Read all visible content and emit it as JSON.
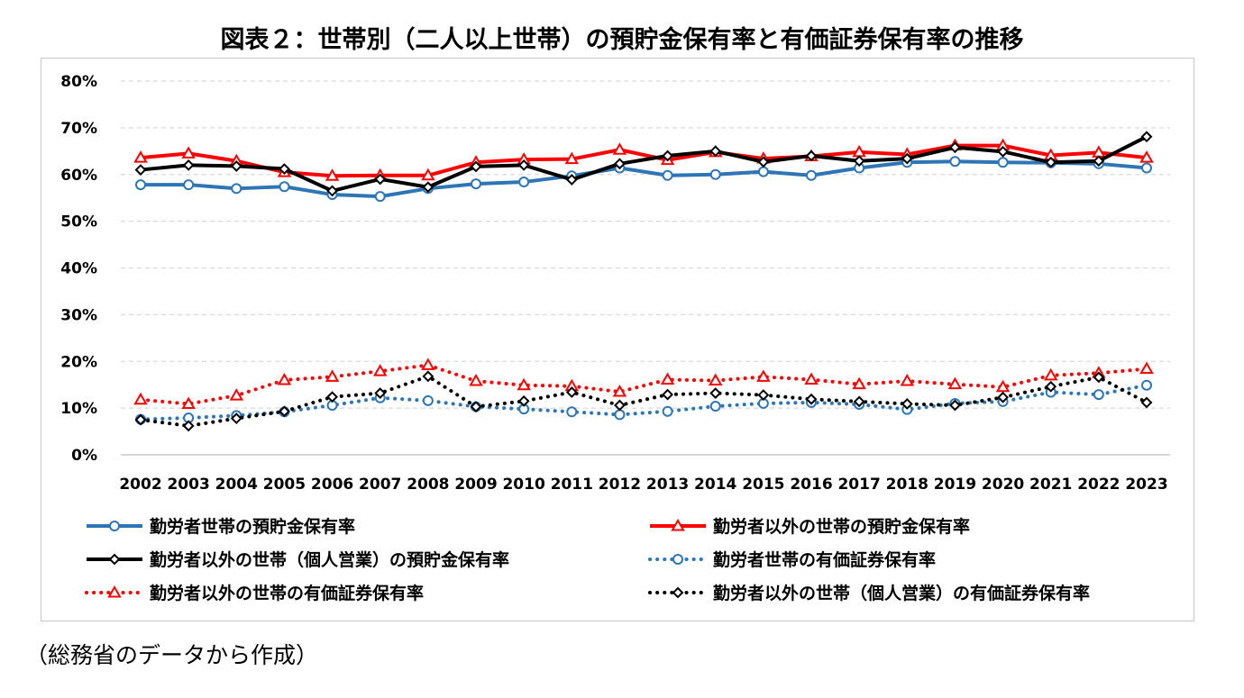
{
  "title": "図表２：世帯別（二人以上世帯）の預貯金保有率と有価証券保有率の推移",
  "source": "（総務省のデータから作成）",
  "colors": {
    "blue": "#2e75b6",
    "red": "#ff0000",
    "black": "#000000",
    "grid": "#d9d9d9"
  },
  "chart_data": {
    "type": "line",
    "title": "",
    "xlabel": "",
    "ylabel": "",
    "ylim": [
      0,
      80
    ],
    "yticks": [
      0,
      10,
      20,
      30,
      40,
      50,
      60,
      70,
      80
    ],
    "ytick_labels": [
      "0%",
      "10%",
      "20%",
      "30%",
      "40%",
      "50%",
      "60%",
      "70%",
      "80%"
    ],
    "grid": "horizontal-dashed",
    "legend_position": "bottom",
    "categories": [
      "2002",
      "2003",
      "2004",
      "2005",
      "2006",
      "2007",
      "2008",
      "2009",
      "2010",
      "2011",
      "2012",
      "2013",
      "2014",
      "2015",
      "2016",
      "2017",
      "2018",
      "2019",
      "2020",
      "2021",
      "2022",
      "2023"
    ],
    "series": [
      {
        "name": "勤労者世帯の預貯金保有率",
        "color": "#2e75b6",
        "line": "solid",
        "marker": "circle",
        "values": [
          57.8,
          57.8,
          57.0,
          57.4,
          55.7,
          55.3,
          57.0,
          58.0,
          58.4,
          59.7,
          61.4,
          59.8,
          60.0,
          60.6,
          59.8,
          61.4,
          62.6,
          62.8,
          62.6,
          62.5,
          62.3,
          61.4
        ]
      },
      {
        "name": "勤労者以外の世帯の預貯金保有率",
        "color": "#ff0000",
        "line": "solid",
        "marker": "triangle",
        "values": [
          63.6,
          64.5,
          62.9,
          60.5,
          59.7,
          59.8,
          59.8,
          62.6,
          63.2,
          63.3,
          65.3,
          63.1,
          64.8,
          63.4,
          63.9,
          64.8,
          64.3,
          66.2,
          66.2,
          64.1,
          64.7,
          63.6
        ]
      },
      {
        "name": "勤労者以外の世帯（個人営業）の預貯金保有率",
        "color": "#000000",
        "line": "solid",
        "marker": "diamond",
        "values": [
          61.0,
          62.0,
          61.8,
          61.2,
          56.5,
          59.0,
          57.3,
          61.7,
          62.0,
          58.9,
          62.3,
          64.0,
          65.0,
          62.7,
          64.0,
          62.9,
          63.4,
          65.8,
          64.9,
          62.6,
          62.9,
          68.1
        ]
      },
      {
        "name": "勤労者世帯の有価証券保有率",
        "color": "#2e75b6",
        "line": "dotted",
        "marker": "circle",
        "values": [
          7.6,
          7.9,
          8.4,
          9.2,
          10.6,
          12.2,
          11.6,
          10.3,
          9.8,
          9.2,
          8.6,
          9.3,
          10.4,
          11.0,
          11.2,
          10.8,
          9.7,
          11.0,
          11.4,
          13.4,
          12.9,
          14.9
        ]
      },
      {
        "name": "勤労者以外の世帯の有価証券保有率",
        "color": "#ff0000",
        "line": "dotted",
        "marker": "triangle",
        "values": [
          11.8,
          10.9,
          12.7,
          16.0,
          16.7,
          17.9,
          19.2,
          15.8,
          14.9,
          14.7,
          13.5,
          16.1,
          15.9,
          16.7,
          16.1,
          15.1,
          15.8,
          15.1,
          14.5,
          17.0,
          17.5,
          18.4
        ]
      },
      {
        "name": "勤労者以外の世帯（個人営業）の有価証券保有率",
        "color": "#000000",
        "line": "dotted",
        "marker": "diamond",
        "values": [
          7.5,
          6.2,
          7.8,
          9.3,
          12.4,
          13.2,
          16.8,
          10.3,
          11.5,
          13.4,
          10.6,
          12.9,
          13.2,
          12.8,
          11.9,
          11.4,
          10.9,
          10.6,
          12.3,
          14.6,
          16.6,
          11.2
        ]
      }
    ]
  }
}
